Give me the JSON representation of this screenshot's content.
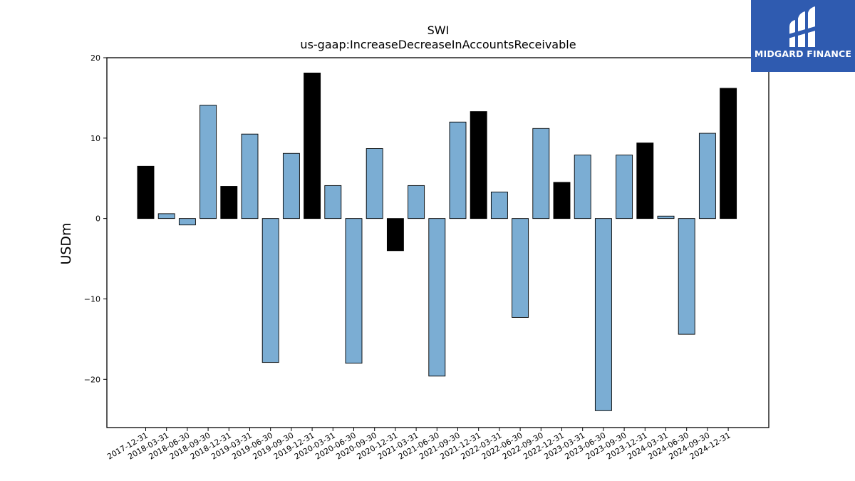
{
  "chart_data": {
    "type": "bar",
    "title": "SWI",
    "subtitle": "us-gaap:IncreaseDecreaseInAccountsReceivable",
    "xlabel": "",
    "ylabel": "USDm",
    "ylim": [
      -26,
      20
    ],
    "yticks": [
      20,
      10,
      0,
      -10,
      -20
    ],
    "ytick_labels": [
      "20",
      "10",
      "0",
      "−10",
      "−20"
    ],
    "grid": false,
    "legend": "none",
    "categories": [
      "2017-12-31",
      "2018-03-31",
      "2018-06-30",
      "2018-09-30",
      "2018-12-31",
      "2019-03-31",
      "2019-06-30",
      "2019-09-30",
      "2019-12-31",
      "2020-03-31",
      "2020-06-30",
      "2020-09-30",
      "2020-12-31",
      "2021-03-31",
      "2021-06-30",
      "2021-09-30",
      "2021-12-31",
      "2022-03-31",
      "2022-06-30",
      "2022-09-30",
      "2022-12-31",
      "2023-03-31",
      "2023-06-30",
      "2023-09-30",
      "2023-12-31",
      "2024-03-31",
      "2024-06-30",
      "2024-09-30",
      "2024-12-31"
    ],
    "values": [
      6.5,
      0.6,
      -0.8,
      14.1,
      4.0,
      10.5,
      -17.9,
      8.1,
      18.1,
      4.1,
      -18.0,
      8.7,
      -4.0,
      4.1,
      -19.6,
      12.0,
      13.3,
      3.3,
      -12.3,
      11.2,
      4.5,
      7.9,
      -23.9,
      7.9,
      9.4,
      0.3,
      -14.4,
      10.6,
      16.2
    ],
    "colors": {
      "q4_bar": "#000000",
      "other_bar": "#7badd3",
      "edge": "#000000"
    },
    "bar_color_rule": "Quarter ending 12-31 drawn in black; other quarters in light blue"
  },
  "logo": {
    "text": "MIDGARD FINANCE",
    "background": "#2f5bb0",
    "icon": "midgard-logo-icon"
  }
}
